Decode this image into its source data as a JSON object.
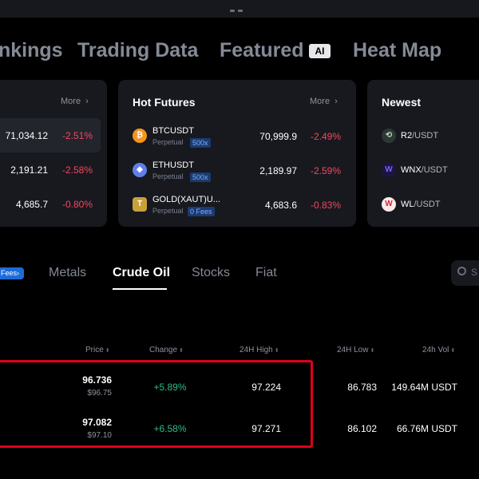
{
  "nav": {
    "tabs": [
      "nkings",
      "Trading Data",
      "Featured",
      "Heat Map"
    ],
    "featured_badge": "AI"
  },
  "cards": {
    "left": {
      "more": "More",
      "rows": [
        {
          "price": "71,034.12",
          "change": "-2.51%"
        },
        {
          "price": "2,191.21",
          "change": "-2.58%"
        },
        {
          "price": "4,685.7",
          "change": "-0.80%"
        }
      ]
    },
    "hot_futures": {
      "title": "Hot Futures",
      "more": "More",
      "rows": [
        {
          "symbol": "BTCUSDT",
          "type": "Perpetual",
          "badge": "500x",
          "price": "70,999.9",
          "change": "-2.49%",
          "icon": "bitcoin-icon",
          "icon_color": "#f7931a",
          "glyph": "₿"
        },
        {
          "symbol": "ETHUSDT",
          "type": "Perpetual",
          "badge": "500x",
          "price": "2,189.97",
          "change": "-2.59%",
          "icon": "ethereum-icon",
          "icon_color": "#627eea",
          "glyph": "◆"
        },
        {
          "symbol": "GOLD(XAUT)U...",
          "type": "Perpetual",
          "badge": "0 Fees",
          "price": "4,683.6",
          "change": "-0.83%",
          "icon": "gold-icon",
          "icon_color": "#c9a13b",
          "glyph": "T"
        }
      ]
    },
    "newest": {
      "title": "Newest",
      "rows": [
        {
          "base": "R2",
          "quote": "/USDT",
          "icon": "r2-icon"
        },
        {
          "base": "WNX",
          "quote": "/USDT",
          "icon": "wnx-icon"
        },
        {
          "base": "WL",
          "quote": "/USDT",
          "icon": "wl-icon"
        }
      ]
    }
  },
  "categories": {
    "fees_label": "Fees",
    "tabs": [
      "Metals",
      "Crude Oil",
      "Stocks",
      "Fiat"
    ],
    "active": "Crude Oil",
    "search_placeholder": "S"
  },
  "table": {
    "headers": [
      "Price",
      "Change",
      "24H High",
      "24H Low",
      "24h Vol"
    ],
    "rows": [
      {
        "price": "96.736",
        "price_usd": "$96.75",
        "change": "+5.89%",
        "high": "97.224",
        "low": "86.783",
        "vol": "149.64M USDT"
      },
      {
        "price": "97.082",
        "price_usd": "$97.10",
        "change": "+6.58%",
        "high": "97.271",
        "low": "86.102",
        "vol": "66.76M USDT"
      }
    ]
  },
  "colors": {
    "negative": "#f6465d",
    "positive": "#2ebd85",
    "highlight_border": "#e0001b",
    "accent": "#1e6bd8"
  }
}
